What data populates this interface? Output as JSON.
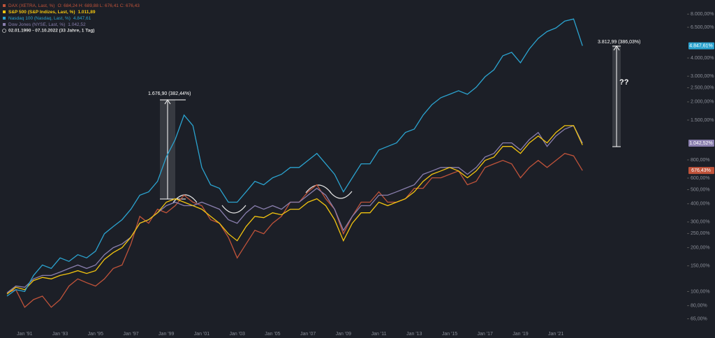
{
  "chart_data": {
    "type": "line",
    "period": "02.01.1990 - 07.10.2022 (33 Jahre, 1 Tag)",
    "log_scale": true,
    "ylim": [
      56,
      10000
    ],
    "yticks": [
      {
        "value": 65,
        "label": "65,00%"
      },
      {
        "value": 80,
        "label": "80,00%"
      },
      {
        "value": 100,
        "label": "100,00%"
      },
      {
        "value": 150,
        "label": "150,00%"
      },
      {
        "value": 200,
        "label": "200,00%"
      },
      {
        "value": 250,
        "label": "250,00%"
      },
      {
        "value": 300,
        "label": "300,00%"
      },
      {
        "value": 400,
        "label": "400,00%"
      },
      {
        "value": 500,
        "label": "500,00%"
      },
      {
        "value": 600,
        "label": "600,00%"
      },
      {
        "value": 800,
        "label": "800,00%"
      },
      {
        "value": 1500,
        "label": "1.500,00%"
      },
      {
        "value": 2000,
        "label": "2.000,00%"
      },
      {
        "value": 2500,
        "label": "2.500,00%"
      },
      {
        "value": 3000,
        "label": "3.000,00%"
      },
      {
        "value": 4000,
        "label": "4.000,00%"
      },
      {
        "value": 6500,
        "label": "6.500,00%"
      },
      {
        "value": 8000,
        "label": "8.000,00%"
      }
    ],
    "categories": [
      null,
      null,
      "Jan '91",
      null,
      null,
      null,
      "Jan '93",
      null,
      null,
      null,
      "Jan '95",
      null,
      null,
      null,
      "Jan '97",
      null,
      null,
      null,
      "Jan '99",
      null,
      null,
      null,
      "Jan '01",
      null,
      null,
      null,
      "Jan '03",
      null,
      null,
      null,
      "Jan '05",
      null,
      null,
      null,
      "Jan '07",
      null,
      null,
      null,
      "Jan '09",
      null,
      null,
      null,
      "Jan '11",
      null,
      null,
      null,
      "Jan '13",
      null,
      null,
      null,
      "Jan '15",
      null,
      null,
      null,
      "Jan '17",
      null,
      null,
      null,
      "Jan '19",
      null,
      null,
      null,
      "Jan '21",
      null,
      null,
      null
    ],
    "series": [
      {
        "name": "DAX (XETRA, Last, %)",
        "legend_value": "O: 684,24  H: 689,88  L: 676,41  C: 676,43",
        "color": "#c0533a",
        "last_label": "676,43%",
        "values": [
          98,
          103,
          78,
          88,
          93,
          78,
          88,
          109,
          122,
          115,
          109,
          122,
          144,
          152,
          212,
          328,
          294,
          367,
          347,
          388,
          458,
          410,
          388,
          311,
          294,
          236,
          170,
          212,
          263,
          249,
          294,
          328,
          410,
          410,
          483,
          540,
          433,
          367,
          249,
          328,
          410,
          410,
          483,
          410,
          410,
          433,
          511,
          511,
          603,
          603,
          637,
          672,
          540,
          570,
          710,
          752,
          793,
          752,
          603,
          710,
          793,
          710,
          793,
          886,
          852,
          676.43
        ]
      },
      {
        "name": "S&P 500 (S&P Indizes, Last, %)",
        "legend_value": "1.011,89",
        "color": "#f2c40f",
        "values": [
          96,
          107,
          103,
          119,
          125,
          122,
          129,
          133,
          139,
          133,
          139,
          166,
          185,
          200,
          236,
          294,
          311,
          347,
          410,
          433,
          410,
          388,
          367,
          328,
          294,
          249,
          223,
          279,
          328,
          321,
          347,
          336,
          367,
          367,
          410,
          433,
          388,
          311,
          223,
          294,
          347,
          347,
          410,
          388,
          410,
          433,
          483,
          570,
          637,
          672,
          710,
          672,
          603,
          672,
          793,
          837,
          989,
          989,
          886,
          1046,
          1167,
          1046,
          1233,
          1374,
          1374,
          1011.89
        ]
      },
      {
        "name": "Nasdaq 100 (Nasdaq, Last, %)",
        "legend_value": "4.847,61",
        "color": "#2ba3cf",
        "last_label": "4.847,61%",
        "values": [
          93,
          103,
          100,
          129,
          152,
          144,
          170,
          161,
          179,
          170,
          189,
          249,
          279,
          311,
          367,
          458,
          483,
          570,
          837,
          1102,
          1623,
          1374,
          710,
          540,
          511,
          410,
          410,
          483,
          570,
          540,
          603,
          637,
          710,
          710,
          793,
          886,
          752,
          637,
          483,
          603,
          752,
          752,
          935,
          989,
          1046,
          1233,
          1300,
          1623,
          1915,
          2136,
          2256,
          2385,
          2256,
          2521,
          2975,
          3320,
          4144,
          4379,
          3710,
          4620,
          5450,
          6080,
          6430,
          7170,
          7410,
          4847.61
        ]
      },
      {
        "name": "Dow Jones (NYSE, Last, %)",
        "legend_value": "1.042,52",
        "color": "#8a7fae",
        "last_label": "1.042,52%",
        "values": [
          98,
          109,
          107,
          122,
          129,
          129,
          136,
          144,
          152,
          144,
          152,
          179,
          200,
          212,
          236,
          294,
          311,
          347,
          388,
          410,
          388,
          388,
          410,
          388,
          367,
          311,
          294,
          347,
          388,
          367,
          388,
          367,
          410,
          410,
          458,
          511,
          458,
          367,
          263,
          328,
          388,
          388,
          458,
          458,
          483,
          511,
          540,
          637,
          672,
          710,
          710,
          710,
          637,
          710,
          837,
          886,
          1046,
          1046,
          935,
          1102,
          1233,
          989,
          1167,
          1300,
          1374,
          1042.52
        ]
      }
    ],
    "annotations": [
      {
        "text": "1.676,90 (382,44%)"
      },
      {
        "text": "3.812,99 (386,03%)"
      },
      {
        "text": "??"
      }
    ]
  }
}
